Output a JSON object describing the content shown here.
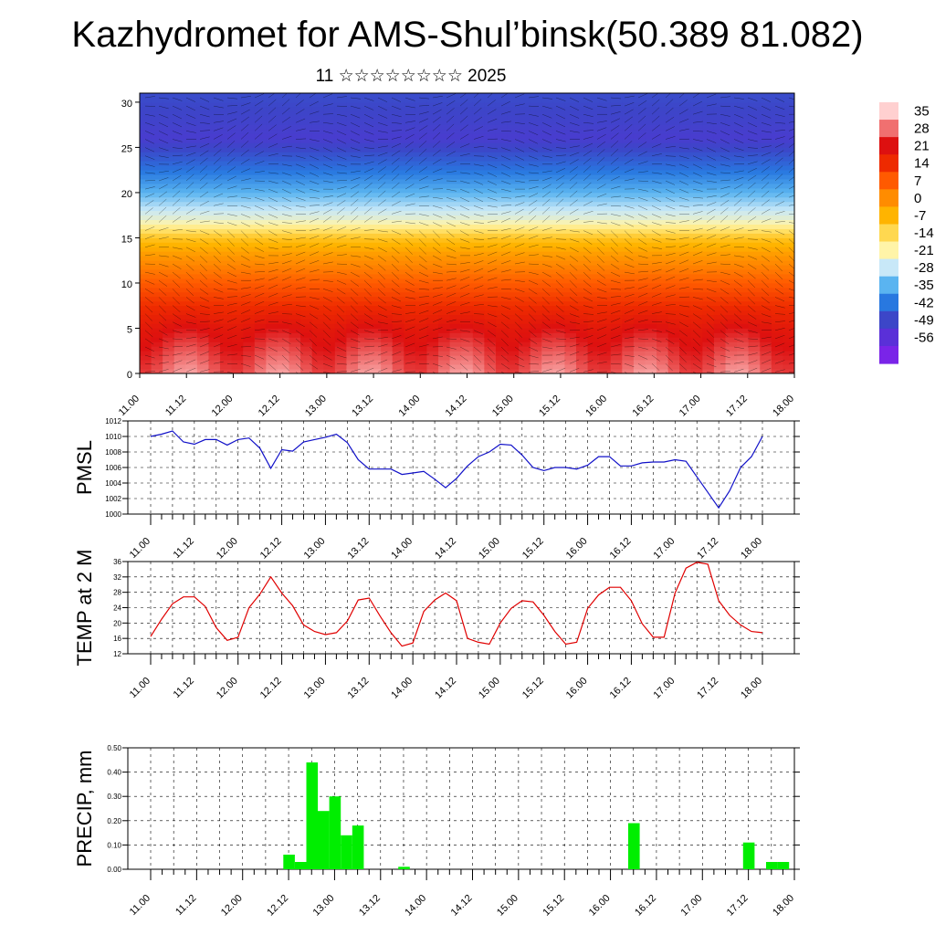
{
  "title": "Kazhydromet for AMS-Shul’binsk(50.389 81.082)",
  "subtitle": "11 ☆☆☆☆☆☆☆☆ 2025",
  "colors": {
    "pmsl_line": "#1010c8",
    "temp_line": "#e00000",
    "precip_bar": "#00ee00"
  },
  "x_ticks": [
    "11.00",
    "11.12",
    "12.00",
    "12.12",
    "13.00",
    "13.12",
    "14.00",
    "14.12",
    "15.00",
    "15.12",
    "16.00",
    "16.12",
    "17.00",
    "17.12",
    "18.00"
  ],
  "chart_data": [
    {
      "type": "heatmap",
      "title": "",
      "ylabel": "",
      "ylim": [
        0,
        31
      ],
      "y_ticks": [
        0,
        5,
        10,
        15,
        20,
        25,
        30
      ],
      "colorbar_labels": [
        "35",
        "28",
        "21",
        "14",
        "7",
        "0",
        "-7",
        "-14",
        "-21",
        "-28",
        "-35",
        "-42",
        "-49",
        "-56"
      ],
      "colorbar_colors": [
        "#ffd0d0",
        "#f07070",
        "#dd1010",
        "#ee2a00",
        "#ff5a00",
        "#ff8c00",
        "#ffb400",
        "#ffd850",
        "#fff4a8",
        "#c8e8f8",
        "#5ab4f0",
        "#2878e0",
        "#3c46c8",
        "#5a30d8",
        "#7a24e8"
      ],
      "profile_altitudes": [
        0,
        5,
        10,
        13,
        15,
        15.8,
        17,
        20,
        23,
        26,
        28,
        31
      ],
      "profile_temps": [
        28,
        20,
        7,
        -2,
        -10,
        -16,
        -24,
        -35,
        -44,
        -52,
        -50,
        -48
      ],
      "overlay": "streamlines and wind vectors"
    },
    {
      "type": "line",
      "ylabel": "PMSL",
      "ylim": [
        1000,
        1012
      ],
      "y_ticks": [
        1000,
        1002,
        1004,
        1006,
        1008,
        1010,
        1012
      ],
      "x": [
        0,
        1,
        2,
        3,
        4,
        5,
        6,
        7,
        8,
        9,
        10,
        11,
        12,
        13,
        14,
        15,
        16,
        17,
        18,
        19,
        20,
        21,
        22,
        23,
        24,
        25,
        26,
        27,
        28,
        29,
        30,
        31,
        32,
        33,
        34,
        35,
        36,
        37,
        38,
        39,
        40,
        41,
        42,
        43,
        44,
        45,
        46,
        47,
        48,
        49,
        50,
        51,
        52,
        53,
        54,
        55,
        56
      ],
      "series": [
        {
          "values": [
            1010.0,
            1010.3,
            1010.7,
            1009.3,
            1009.0,
            1009.6,
            1009.6,
            1008.9,
            1009.6,
            1009.8,
            1008.5,
            1005.9,
            1008.3,
            1008.1,
            1009.3,
            1009.6,
            1009.9,
            1010.3,
            1009.2,
            1007.0,
            1005.8,
            1005.8,
            1005.8,
            1005.1,
            1005.3,
            1005.5,
            1004.5,
            1003.4,
            1004.6,
            1006.2,
            1007.4,
            1008.0,
            1009.0,
            1008.9,
            1007.6,
            1006.0,
            1005.6,
            1006.0,
            1006.0,
            1005.8,
            1006.3,
            1007.4,
            1007.4,
            1006.2,
            1006.2,
            1006.6,
            1006.7,
            1006.7,
            1007.0,
            1006.8,
            1004.8,
            1002.8,
            1000.8,
            1003.0,
            1006.0,
            1007.4,
            1010.0
          ]
        }
      ]
    },
    {
      "type": "line",
      "ylabel": "TEMP at 2 M",
      "ylim": [
        12,
        36
      ],
      "y_ticks": [
        12,
        16,
        20,
        24,
        28,
        32,
        36
      ],
      "x": [
        0,
        1,
        2,
        3,
        4,
        5,
        6,
        7,
        8,
        9,
        10,
        11,
        12,
        13,
        14,
        15,
        16,
        17,
        18,
        19,
        20,
        21,
        22,
        23,
        24,
        25,
        26,
        27,
        28,
        29,
        30,
        31,
        32,
        33,
        34,
        35,
        36,
        37,
        38,
        39,
        40,
        41,
        42,
        43,
        44,
        45,
        46,
        47,
        48,
        49,
        50,
        51,
        52,
        53,
        54,
        55,
        56
      ],
      "series": [
        {
          "values": [
            16.5,
            21.0,
            25.0,
            26.8,
            26.8,
            24.3,
            18.8,
            15.5,
            16.3,
            24.0,
            27.5,
            32.0,
            27.8,
            24.5,
            19.5,
            17.8,
            17.0,
            17.5,
            20.5,
            26.0,
            26.5,
            21.8,
            17.5,
            14.0,
            14.8,
            23.0,
            26.0,
            27.8,
            25.8,
            16.0,
            15.0,
            14.5,
            20.0,
            23.8,
            25.8,
            25.5,
            22.0,
            17.8,
            14.5,
            15.0,
            23.8,
            27.3,
            29.3,
            29.3,
            25.8,
            19.8,
            16.3,
            16.3,
            27.8,
            34.3,
            35.8,
            35.3,
            25.8,
            22.0,
            19.5,
            17.8,
            17.5
          ]
        }
      ]
    },
    {
      "type": "bar",
      "ylabel": "PRECIP, mm",
      "ylim": [
        0,
        0.5
      ],
      "y_tick_labels": [
        "0.00",
        "0.10",
        "0.20",
        "0.30",
        "0.40",
        "0.50"
      ],
      "x": [
        0,
        1,
        2,
        3,
        4,
        5,
        6,
        7,
        8,
        9,
        10,
        11,
        12,
        13,
        14,
        15,
        16,
        17,
        18,
        19,
        20,
        21,
        22,
        23,
        24,
        25,
        26,
        27,
        28,
        29,
        30,
        31,
        32,
        33,
        34,
        35,
        36,
        37,
        38,
        39,
        40,
        41,
        42,
        43,
        44,
        45,
        46,
        47,
        48,
        49,
        50,
        51,
        52,
        53,
        54,
        55
      ],
      "values": [
        0,
        0,
        0,
        0,
        0,
        0,
        0,
        0,
        0,
        0,
        0,
        0,
        0.06,
        0.03,
        0.44,
        0.24,
        0.3,
        0.14,
        0.18,
        0,
        0,
        0,
        0.01,
        0,
        0,
        0,
        0,
        0,
        0,
        0,
        0,
        0,
        0,
        0,
        0,
        0,
        0,
        0,
        0,
        0,
        0,
        0,
        0.19,
        0,
        0,
        0,
        0,
        0,
        0,
        0,
        0,
        0,
        0.11,
        0,
        0.03,
        0.03
      ]
    }
  ]
}
